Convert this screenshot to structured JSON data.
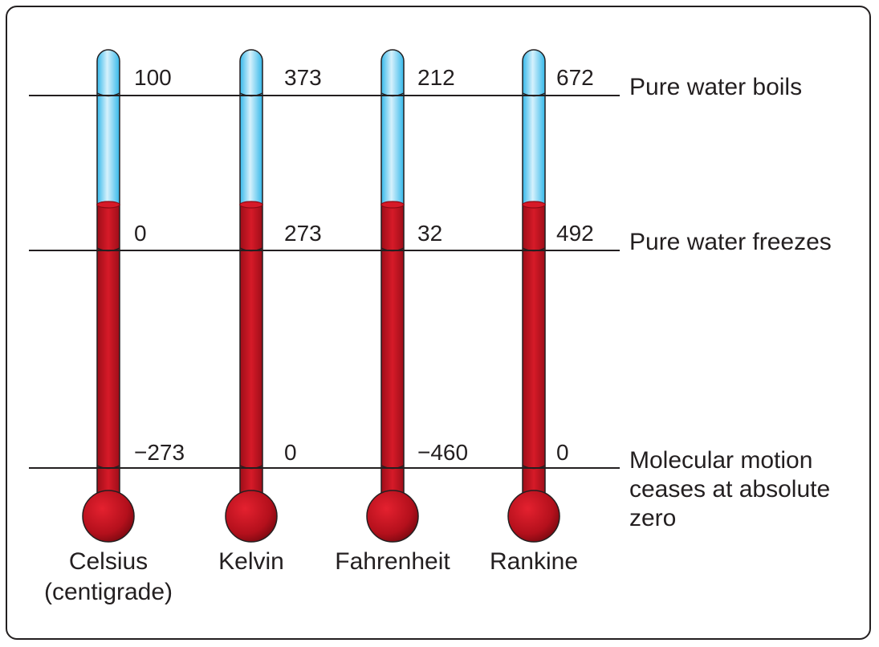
{
  "reference_points": [
    {
      "label_lines": [
        "Pure water boils"
      ]
    },
    {
      "label_lines": [
        "Pure water freezes"
      ]
    },
    {
      "label_lines": [
        "Molecular motion",
        "ceases at absolute",
        "zero"
      ]
    }
  ],
  "scales": [
    {
      "name_lines": [
        "Celsius",
        "(centigrade)"
      ],
      "values": [
        "100",
        "0",
        "−273"
      ]
    },
    {
      "name_lines": [
        "Kelvin"
      ],
      "values": [
        "373",
        "273",
        "0"
      ]
    },
    {
      "name_lines": [
        "Fahrenheit"
      ],
      "values": [
        "212",
        "32",
        "−460"
      ]
    },
    {
      "name_lines": [
        "Rankine"
      ],
      "values": [
        "672",
        "492",
        "0"
      ]
    }
  ],
  "colors": {
    "mercury": "#c1121f",
    "mercury_dark": "#8c0a14",
    "tube_blue": "#34b8ea",
    "tube_blue_light": "#d6f1fc",
    "line": "#231f20"
  }
}
